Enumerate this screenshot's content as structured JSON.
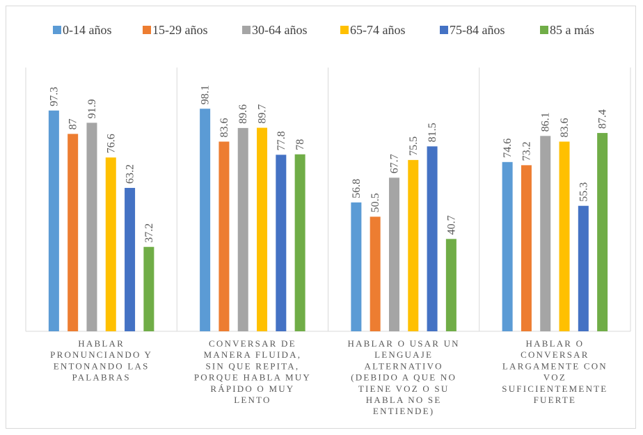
{
  "chart_data": {
    "type": "bar",
    "categories": [
      [
        "HABLAR",
        "PRONUNCIANDO Y",
        "ENTONANDO LAS",
        "PALABRAS"
      ],
      [
        "CONVERSAR DE",
        "MANERA FLUIDA,",
        "SIN QUE REPITA,",
        "PORQUE HABLA MUY",
        "RÁPIDO O MUY",
        "LENTO"
      ],
      [
        "HABLAR O USAR UN",
        "LENGUAJE",
        "ALTERNATIVO",
        "(DEBIDO A QUE NO",
        "TIENE VOZ O SU",
        "HABLA NO SE",
        "ENTIENDE)"
      ],
      [
        "HABLAR O",
        "CONVERSAR",
        "LARGAMENTE CON",
        "VOZ",
        "SUFICIENTEMENTE",
        "FUERTE"
      ]
    ],
    "series": [
      {
        "name": "0-14 años",
        "color": "#5B9BD5",
        "values": [
          97.3,
          98.1,
          56.8,
          74.6
        ]
      },
      {
        "name": "15-29 años",
        "color": "#ED7D31",
        "values": [
          87,
          83.6,
          50.5,
          73.2
        ]
      },
      {
        "name": "30-64 años",
        "color": "#A5A5A5",
        "values": [
          91.9,
          89.6,
          67.7,
          86.1
        ]
      },
      {
        "name": "65-74 años",
        "color": "#FFC000",
        "values": [
          76.6,
          89.7,
          75.5,
          83.6
        ]
      },
      {
        "name": "75-84 años",
        "color": "#4472C4",
        "values": [
          63.2,
          77.8,
          81.5,
          55.3
        ]
      },
      {
        "name": "85 a más",
        "color": "#70AD47",
        "values": [
          37.2,
          78,
          40.7,
          87.4
        ]
      }
    ],
    "ylim": [
      0,
      100
    ],
    "legend": "top",
    "grid": false,
    "title": "",
    "xlabel": "",
    "ylabel": ""
  }
}
